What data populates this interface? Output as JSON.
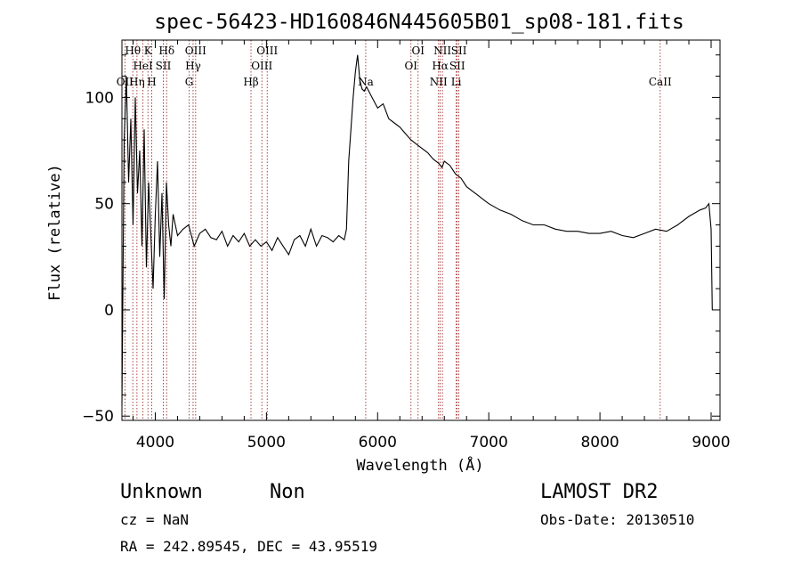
{
  "chart_data": {
    "type": "line",
    "title": "spec-56423-HD160846N445605B01_sp08-181.fits",
    "xlabel": "Wavelength (Å)",
    "ylabel": "Flux (relative)",
    "xlim": [
      3700,
      9080
    ],
    "ylim": [
      -52,
      127
    ],
    "xticks": [
      {
        "value": 4000,
        "label": "4000"
      },
      {
        "value": 5000,
        "label": "5000"
      },
      {
        "value": 6000,
        "label": "6000"
      },
      {
        "value": 7000,
        "label": "7000"
      },
      {
        "value": 8000,
        "label": "8000"
      },
      {
        "value": 9000,
        "label": "9000"
      }
    ],
    "yticks": [
      {
        "value": -50,
        "label": "−50"
      },
      {
        "value": 0,
        "label": "0"
      },
      {
        "value": 50,
        "label": "50"
      },
      {
        "value": 100,
        "label": "100"
      }
    ],
    "spectrum": {
      "x": [
        3700,
        3720,
        3740,
        3760,
        3780,
        3800,
        3820,
        3840,
        3860,
        3880,
        3900,
        3920,
        3940,
        3960,
        3980,
        4000,
        4020,
        4040,
        4060,
        4080,
        4100,
        4120,
        4140,
        4160,
        4200,
        4250,
        4300,
        4350,
        4400,
        4450,
        4500,
        4550,
        4600,
        4650,
        4700,
        4750,
        4800,
        4850,
        4900,
        4950,
        5000,
        5050,
        5100,
        5150,
        5200,
        5250,
        5300,
        5350,
        5400,
        5450,
        5500,
        5550,
        5600,
        5650,
        5700,
        5720,
        5740,
        5760,
        5780,
        5800,
        5820,
        5840,
        5860,
        5880,
        5900,
        5950,
        6000,
        6050,
        6100,
        6150,
        6200,
        6250,
        6300,
        6350,
        6400,
        6450,
        6500,
        6550,
        6580,
        6600,
        6650,
        6700,
        6750,
        6800,
        6850,
        6900,
        6950,
        7000,
        7100,
        7200,
        7300,
        7400,
        7500,
        7600,
        7700,
        7800,
        7900,
        8000,
        8100,
        8200,
        8300,
        8400,
        8500,
        8600,
        8700,
        8800,
        8900,
        8950,
        8980,
        9000,
        9010
      ],
      "y": [
        -45,
        80,
        110,
        60,
        90,
        40,
        100,
        55,
        75,
        30,
        85,
        20,
        60,
        35,
        10,
        45,
        70,
        25,
        55,
        5,
        60,
        40,
        30,
        45,
        35,
        38,
        40,
        30,
        36,
        38,
        34,
        33,
        37,
        30,
        35,
        32,
        36,
        30,
        33,
        30,
        32,
        28,
        34,
        30,
        26,
        33,
        35,
        30,
        38,
        30,
        35,
        34,
        32,
        35,
        33,
        38,
        70,
        85,
        100,
        112,
        120,
        108,
        104,
        103,
        105,
        100,
        95,
        97,
        90,
        88,
        86,
        83,
        80,
        78,
        76,
        74,
        71,
        69,
        67,
        70,
        68,
        64,
        62,
        58,
        56,
        54,
        52,
        50,
        47,
        45,
        42,
        40,
        40,
        38,
        37,
        37,
        36,
        36,
        37,
        35,
        34,
        36,
        38,
        37,
        40,
        44,
        47,
        48,
        50,
        38,
        0
      ]
    },
    "emission_lines": [
      {
        "label": "OII",
        "wavelength": 3727,
        "row": 2
      },
      {
        "label": "Hθ",
        "wavelength": 3798,
        "row": 0
      },
      {
        "label": "Hη",
        "wavelength": 3835,
        "row": 2
      },
      {
        "label": "HeI",
        "wavelength": 3889,
        "row": 1
      },
      {
        "label": "K",
        "wavelength": 3934,
        "row": 0
      },
      {
        "label": "H",
        "wavelength": 3968,
        "row": 2
      },
      {
        "label": "SII",
        "wavelength": 4072,
        "row": 1
      },
      {
        "label": "Hδ",
        "wavelength": 4102,
        "row": 0
      },
      {
        "label": "G",
        "wavelength": 4305,
        "row": 2
      },
      {
        "label": "Hγ",
        "wavelength": 4340,
        "row": 1
      },
      {
        "label": "OIII",
        "wavelength": 4363,
        "row": 0
      },
      {
        "label": "Hβ",
        "wavelength": 4861,
        "row": 2
      },
      {
        "label": "OIII",
        "wavelength": 4959,
        "row": 1
      },
      {
        "label": "OIII",
        "wavelength": 5007,
        "row": 0
      },
      {
        "label": "Na",
        "wavelength": 5893,
        "row": 2
      },
      {
        "label": "OI",
        "wavelength": 6300,
        "row": 1
      },
      {
        "label": "OI",
        "wavelength": 6364,
        "row": 0
      },
      {
        "label": "NII",
        "wavelength": 6548,
        "row": 2
      },
      {
        "label": "Hα",
        "wavelength": 6563,
        "row": 1
      },
      {
        "label": "NII",
        "wavelength": 6583,
        "row": 0
      },
      {
        "label": "Li",
        "wavelength": 6707,
        "row": 2
      },
      {
        "label": "SII",
        "wavelength": 6716,
        "row": 1
      },
      {
        "label": "SII",
        "wavelength": 6731,
        "row": 0
      },
      {
        "label": "CaII",
        "wavelength": 8542,
        "row": 2
      }
    ],
    "colors": {
      "spectrum": "#000000",
      "line_marker": "#a03030",
      "axis": "#000000"
    }
  },
  "info": {
    "class_label": "Unknown",
    "subclass_label": "Non",
    "survey": "LAMOST DR2",
    "redshift": "cz = NaN",
    "obs_date": "Obs-Date: 20130510",
    "coords": "RA = 242.89545, DEC =  43.95519"
  }
}
